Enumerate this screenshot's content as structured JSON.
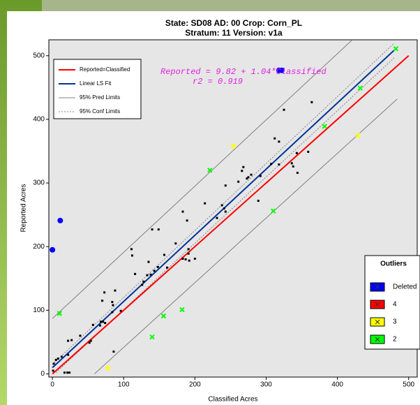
{
  "chart_data": {
    "type": "scatter",
    "title": "State: SD08   AD: 00   Crop: Corn_PL",
    "subtitle": "Stratum: 11  Version: v1a",
    "x_label": "Classified Acres",
    "y_label": "Reported Acres",
    "xlim": [
      -5,
      512
    ],
    "ylim": [
      -5,
      525
    ],
    "xticks": [
      0,
      100,
      200,
      300,
      400,
      500
    ],
    "yticks": [
      0,
      100,
      200,
      300,
      400,
      500
    ],
    "annotations": [
      "Reported = 9.82 + 1.04*Classified",
      "r2 = 0.919"
    ],
    "series": [
      {
        "color": "#000000",
        "marker": "square",
        "x": [
          1,
          2,
          5,
          8,
          13,
          17,
          21,
          22,
          27,
          22,
          24,
          39,
          52,
          54,
          57,
          67,
          68,
          71,
          74,
          70,
          73,
          84,
          84,
          85,
          86,
          88,
          96,
          111,
          112,
          116,
          126,
          128,
          133,
          135,
          138,
          140,
          143,
          149,
          148,
          157,
          161,
          173,
          183,
          183,
          187,
          189,
          191,
          191,
          192,
          200,
          214,
          231,
          238,
          241,
          243,
          243,
          261,
          266,
          268,
          273,
          275,
          279,
          289,
          292,
          307,
          312,
          318,
          318,
          325,
          336,
          338,
          343,
          344,
          359,
          364
        ],
        "values": [
          5,
          16,
          22,
          24,
          27,
          2,
          2,
          52,
          53,
          30,
          2,
          60,
          49,
          52,
          77,
          76,
          82,
          82,
          80,
          115,
          128,
          97,
          113,
          108,
          35,
          131,
          99,
          196,
          186,
          157,
          140,
          145,
          155,
          176,
          156,
          227,
          162,
          227,
          168,
          187,
          167,
          205,
          255,
          181,
          180,
          241,
          196,
          189,
          178,
          181,
          268,
          245,
          265,
          260,
          296,
          255,
          302,
          319,
          325,
          307,
          309,
          313,
          272,
          311,
          330,
          370,
          365,
          329,
          415,
          331,
          326,
          347,
          316,
          349,
          427
        ]
      },
      {
        "name": "Deleted",
        "color": "#0000ff",
        "marker": "circle",
        "x": [
          0,
          11,
          318,
          322
        ],
        "values": [
          195,
          241,
          477,
          477
        ]
      },
      {
        "name": "4",
        "color": "#ff0000",
        "marker": "x",
        "x": [],
        "values": []
      },
      {
        "name": "3",
        "color": "#ffff00",
        "marker": "x",
        "x": [
          78,
          254,
          429
        ],
        "values": [
          9,
          358,
          375
        ]
      },
      {
        "name": "2",
        "color": "#00ff00",
        "marker": "x",
        "x": [
          10,
          221,
          140,
          156,
          182,
          310,
          382,
          432,
          482
        ],
        "values": [
          95,
          320,
          58,
          91,
          101,
          256,
          389,
          449,
          511
        ]
      }
    ],
    "lines": [
      {
        "name": "Reported=Classified",
        "color": "#ff0000",
        "width": 2,
        "x": [
          0,
          500
        ],
        "values": [
          0,
          500
        ]
      },
      {
        "name": "Linear LS Fit",
        "color": "#003399",
        "width": 2,
        "x": [
          0,
          480
        ],
        "values": [
          9.82,
          509
        ]
      },
      {
        "name": "95% Pred Limits",
        "color": "#808080",
        "width": 1,
        "x": [
          0,
          420
        ],
        "values": [
          87,
          524
        ]
      },
      {
        "name": "95% Conf Limits",
        "color": "#808080",
        "width": 1,
        "dash": true,
        "x": [
          0,
          480
        ],
        "values": [
          15,
          520
        ]
      }
    ],
    "extra_lines": [
      {
        "color": "#808080",
        "width": 1,
        "x": [
          59,
          484
        ],
        "values": [
          0,
          432
        ]
      },
      {
        "color": "#808080",
        "width": 1,
        "dash": true,
        "x": [
          5,
          480
        ],
        "values": [
          2,
          497
        ]
      }
    ],
    "outlier_legend_title": "Outliers"
  }
}
